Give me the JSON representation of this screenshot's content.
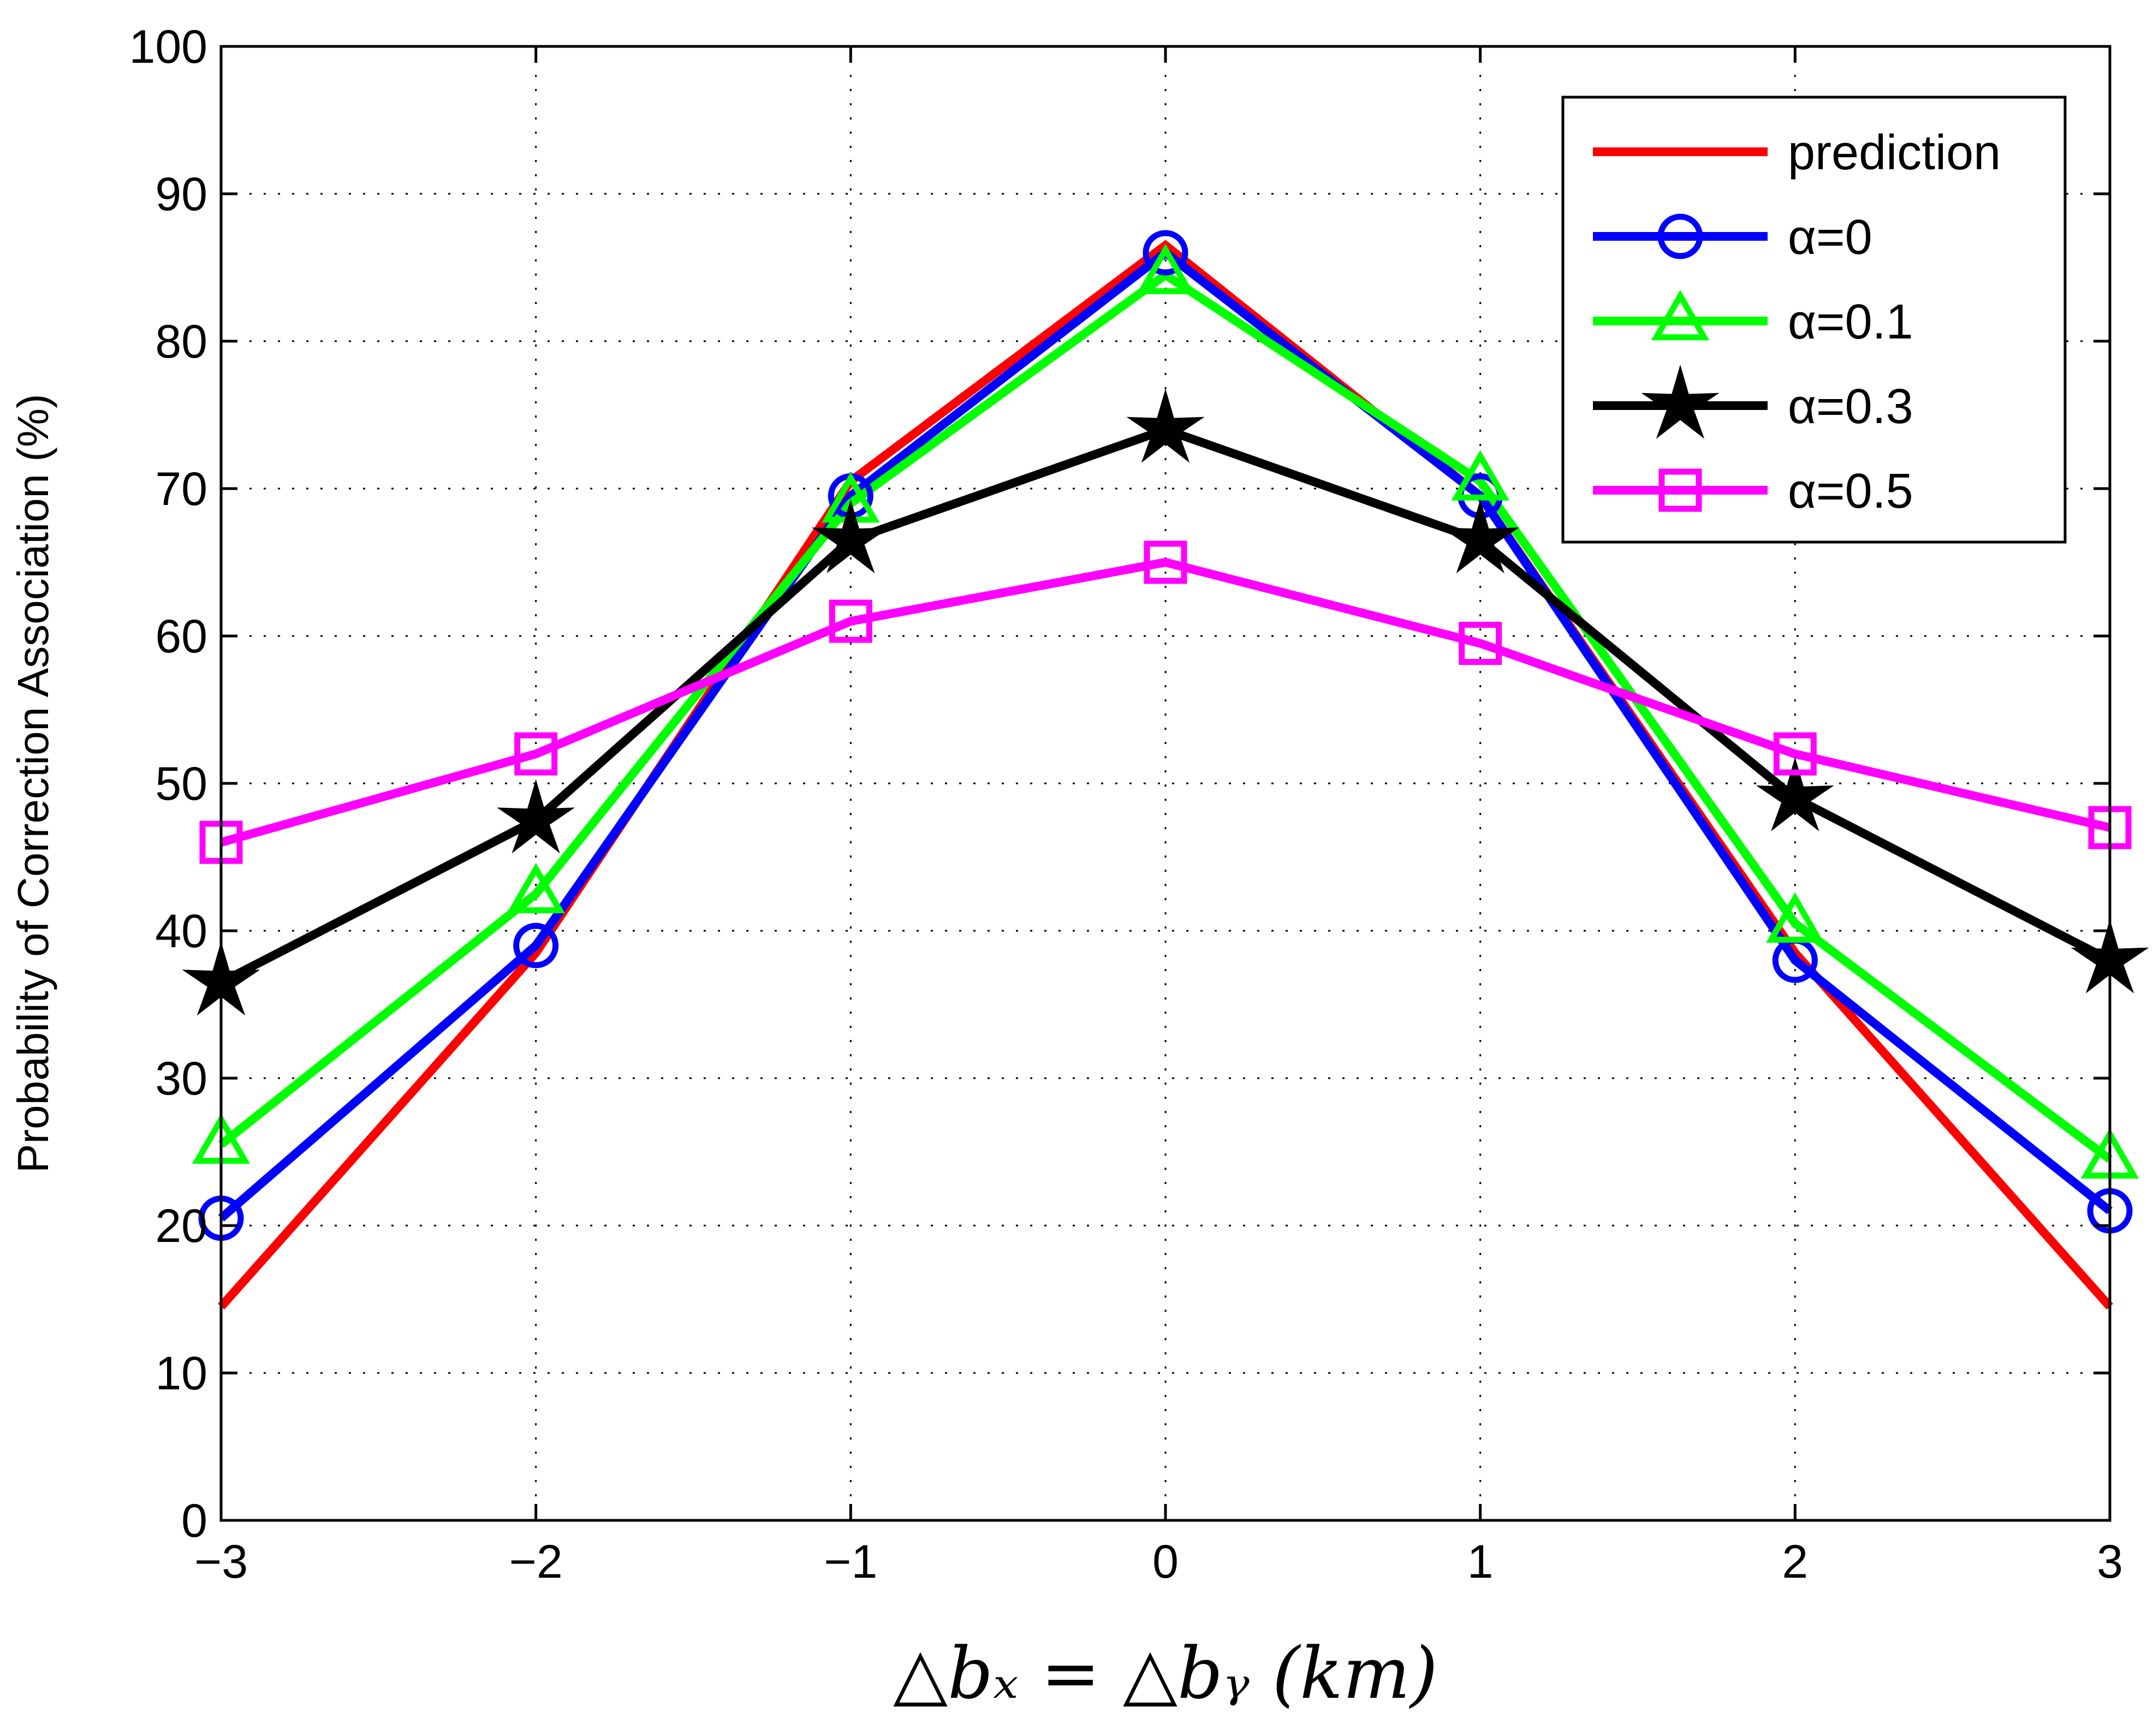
{
  "chart_data": {
    "type": "line",
    "title": "",
    "xlabel": "△bₓ = △bᵧ (km)",
    "ylabel": "Probability of Correction Association (%)",
    "xlim": [
      -3,
      3
    ],
    "ylim": [
      0,
      100
    ],
    "x": [
      -3,
      -2,
      -1,
      0,
      1,
      2,
      3
    ],
    "xticks": [
      -3,
      -2,
      -1,
      0,
      1,
      2,
      3
    ],
    "xtick_labels": [
      "−3",
      "−2",
      "−1",
      "0",
      "1",
      "2",
      "3"
    ],
    "yticks": [
      0,
      10,
      20,
      30,
      40,
      50,
      60,
      70,
      80,
      90,
      100
    ],
    "ytick_labels": [
      "0",
      "10",
      "20",
      "30",
      "40",
      "50",
      "60",
      "70",
      "80",
      "90",
      "100"
    ],
    "grid": true,
    "legend_position": "top-right",
    "series": [
      {
        "name": "prediction",
        "color": "#ff0000",
        "marker": "none",
        "values": [
          14.5,
          38.5,
          70.5,
          86.5,
          69.5,
          38.5,
          14.5
        ]
      },
      {
        "name": "α=0",
        "color": "#0000ff",
        "marker": "circle",
        "values": [
          20.5,
          39,
          69.5,
          86,
          69.5,
          38,
          21
        ]
      },
      {
        "name": "α=0.1",
        "color": "#00ff00",
        "marker": "triangle",
        "values": [
          25.5,
          42.5,
          69,
          84.5,
          70.5,
          40.5,
          24.5
        ]
      },
      {
        "name": "α=0.3",
        "color": "#000000",
        "marker": "star",
        "values": [
          36.5,
          47.5,
          66.5,
          74,
          66.5,
          49,
          38
        ]
      },
      {
        "name": "α=0.5",
        "color": "#ff00ff",
        "marker": "square",
        "values": [
          46,
          52,
          61,
          65,
          59.5,
          52,
          47
        ]
      }
    ]
  }
}
